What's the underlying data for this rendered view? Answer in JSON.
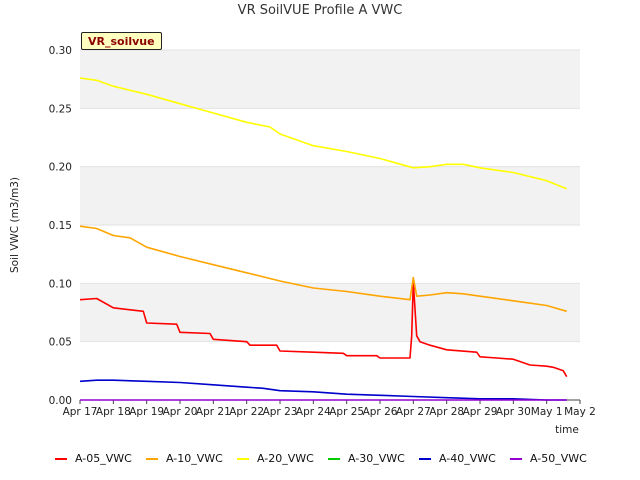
{
  "chart_data": {
    "type": "line",
    "title": "VR SoilVUE Profile A VWC",
    "tag": "VR_soilvue",
    "xlabel": "time",
    "ylabel": "Soil VWC (m3/m3)",
    "x_ticks": [
      "Apr 17",
      "Apr 18",
      "Apr 19",
      "Apr 20",
      "Apr 21",
      "Apr 22",
      "Apr 23",
      "Apr 24",
      "Apr 25",
      "Apr 26",
      "Apr 27",
      "Apr 28",
      "Apr 29",
      "Apr 30",
      "May 1",
      "May 2"
    ],
    "xlim": [
      0,
      15
    ],
    "ylim": [
      0,
      0.3
    ],
    "y_ticks": [
      "0.00",
      "0.05",
      "0.10",
      "0.15",
      "0.20",
      "0.25",
      "0.30"
    ],
    "grid": "alternating horizontal bands",
    "legend_position": "bottom",
    "series": [
      {
        "name": "A-05_VWC",
        "color": "#ff0000",
        "x": [
          0,
          0.5,
          1.0,
          1.9,
          2.0,
          2.9,
          3.0,
          3.9,
          4.0,
          5.0,
          5.1,
          5.9,
          6.0,
          7.0,
          7.9,
          8.0,
          8.9,
          9.0,
          9.9,
          9.95,
          10.0,
          10.1,
          10.2,
          10.5,
          11.0,
          11.9,
          12.0,
          12.5,
          13.0,
          13.5,
          14.0,
          14.2,
          14.5,
          14.6
        ],
        "y": [
          0.086,
          0.087,
          0.079,
          0.076,
          0.066,
          0.065,
          0.058,
          0.057,
          0.052,
          0.05,
          0.047,
          0.047,
          0.042,
          0.041,
          0.04,
          0.038,
          0.038,
          0.036,
          0.036,
          0.055,
          0.101,
          0.055,
          0.05,
          0.047,
          0.043,
          0.041,
          0.037,
          0.036,
          0.035,
          0.03,
          0.029,
          0.028,
          0.025,
          0.02
        ]
      },
      {
        "name": "A-10_VWC",
        "color": "#ffa500",
        "x": [
          0,
          0.5,
          1.0,
          1.5,
          2.0,
          3.0,
          4.0,
          5.0,
          6.0,
          7.0,
          8.0,
          9.0,
          9.9,
          10.0,
          10.1,
          10.5,
          11.0,
          11.5,
          12.0,
          13.0,
          14.0,
          14.6
        ],
        "y": [
          0.149,
          0.147,
          0.141,
          0.139,
          0.131,
          0.123,
          0.116,
          0.109,
          0.102,
          0.096,
          0.093,
          0.089,
          0.086,
          0.105,
          0.089,
          0.09,
          0.092,
          0.091,
          0.089,
          0.085,
          0.081,
          0.076
        ]
      },
      {
        "name": "A-20_VWC",
        "color": "#ffff00",
        "x": [
          0,
          0.5,
          1.0,
          2.0,
          3.0,
          4.0,
          5.0,
          5.7,
          6.0,
          7.0,
          8.0,
          9.0,
          9.5,
          10.0,
          10.5,
          11.0,
          11.5,
          12.0,
          13.0,
          14.0,
          14.6
        ],
        "y": [
          0.276,
          0.274,
          0.269,
          0.262,
          0.254,
          0.246,
          0.238,
          0.234,
          0.228,
          0.218,
          0.213,
          0.207,
          0.203,
          0.199,
          0.2,
          0.202,
          0.202,
          0.199,
          0.195,
          0.188,
          0.181
        ]
      },
      {
        "name": "A-30_VWC",
        "color": "#00cc00",
        "x": [],
        "y": []
      },
      {
        "name": "A-40_VWC",
        "color": "#0000cc",
        "x": [
          0,
          0.5,
          1.0,
          2.0,
          3.0,
          4.0,
          5.0,
          5.5,
          6.0,
          7.0,
          8.0,
          9.0,
          10.0,
          11.0,
          12.0,
          13.0,
          14.0,
          14.6
        ],
        "y": [
          0.016,
          0.017,
          0.017,
          0.016,
          0.015,
          0.013,
          0.011,
          0.01,
          0.008,
          0.007,
          0.005,
          0.004,
          0.003,
          0.002,
          0.001,
          0.001,
          0.0,
          0.0
        ]
      },
      {
        "name": "A-50_VWC",
        "color": "#9400d3",
        "x": [
          0,
          14.6
        ],
        "y": [
          0.0,
          0.0
        ]
      }
    ]
  }
}
